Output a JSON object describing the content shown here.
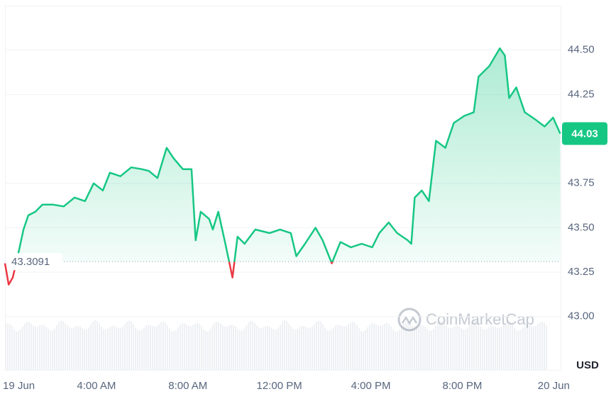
{
  "chart_data": {
    "type": "line",
    "x": [
      0,
      0.16,
      0.34,
      0.56,
      0.81,
      1.02,
      1.33,
      1.64,
      2.11,
      2.57,
      3.04,
      3.5,
      3.88,
      4.28,
      4.59,
      5.05,
      5.52,
      5.98,
      6.29,
      6.67,
      7.07,
      7.38,
      7.78,
      8.16,
      8.34,
      8.56,
      8.93,
      9.09,
      9.33,
      9.64,
      9.95,
      10.17,
      10.48,
      10.95,
      11.57,
      12.03,
      12.5,
      12.74,
      13.12,
      13.58,
      13.89,
      14.29,
      14.67,
      15.13,
      15.6,
      16.06,
      16.37,
      16.78,
      17.15,
      17.61,
      17.77,
      17.92,
      18.23,
      18.54,
      18.85,
      19.26,
      19.63,
      20.09,
      20.5,
      20.71,
      21.18,
      21.64,
      21.86,
      22.05,
      22.36,
      22.73,
      23.19,
      23.6,
      23.97,
      24.28
    ],
    "series": [
      {
        "name": "Price",
        "color": "#16c784",
        "down_color": "#ea3943",
        "values": [
          43.3,
          43.18,
          43.22,
          43.34,
          43.49,
          43.57,
          43.59,
          43.63,
          43.63,
          43.62,
          43.67,
          43.65,
          43.75,
          43.71,
          43.81,
          43.79,
          43.84,
          43.83,
          43.82,
          43.78,
          43.95,
          43.89,
          43.83,
          43.83,
          43.43,
          43.59,
          43.55,
          43.49,
          43.59,
          43.41,
          43.22,
          43.45,
          43.41,
          43.49,
          43.47,
          43.49,
          43.47,
          43.34,
          43.41,
          43.5,
          43.43,
          43.3,
          43.42,
          43.39,
          43.41,
          43.39,
          43.47,
          43.53,
          43.47,
          43.43,
          43.41,
          43.67,
          43.71,
          43.65,
          43.99,
          43.95,
          44.09,
          44.13,
          44.15,
          44.35,
          44.41,
          44.51,
          44.47,
          44.23,
          44.29,
          44.15,
          44.11,
          44.07,
          44.12,
          44.03
        ]
      }
    ],
    "xlim": [
      0,
      24.3
    ],
    "xticks": [
      {
        "value": 0,
        "label": "19 Jun"
      },
      {
        "value": 4,
        "label": "4:00 AM"
      },
      {
        "value": 8,
        "label": "8:00 AM"
      },
      {
        "value": 12,
        "label": "12:00 PM"
      },
      {
        "value": 16,
        "label": "4:00 PM"
      },
      {
        "value": 20,
        "label": "8:00 PM"
      },
      {
        "value": 24,
        "label": "20 Jun"
      }
    ],
    "ylim": [
      42.7,
      44.75
    ],
    "yticks": [
      {
        "value": 43,
        "label": "43.00"
      },
      {
        "value": 43.25,
        "label": "43.25"
      },
      {
        "value": 43.5,
        "label": "43.50"
      },
      {
        "value": 43.75,
        "label": "43.75"
      },
      {
        "value": 44.25,
        "label": "44.25"
      },
      {
        "value": 44.5,
        "label": "44.50"
      }
    ],
    "grid": true,
    "baseline": 43.3091,
    "current_price": 44.03,
    "y_unit": "USD",
    "watermark": "CoinMarketCap"
  }
}
